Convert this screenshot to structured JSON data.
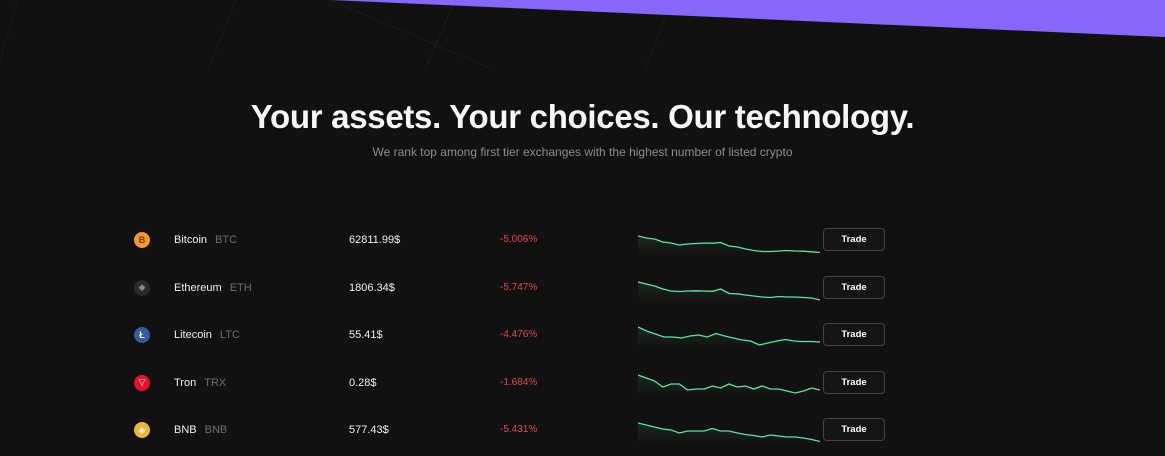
{
  "hero": {
    "title": "Your assets. Your choices. Our technology.",
    "subtitle": "We rank top among first tier exchanges with the highest number of listed crypto"
  },
  "colors": {
    "background": "#111111",
    "accent_purple": "#8766fc",
    "negative": "#e0454f",
    "sparkline": "#5ee3a1"
  },
  "assets": [
    {
      "name": "Bitcoin",
      "symbol": "BTC",
      "price": "62811.99$",
      "change": "-5.006%",
      "icon": "bitcoin-icon",
      "icon_color": "#f2962d",
      "icon_glyph": "B",
      "trade_label": "Trade",
      "spark": [
        10,
        12,
        13,
        16,
        17,
        19,
        18,
        17.5,
        17,
        17.2,
        16.5,
        20,
        21,
        23,
        24.5,
        25.5,
        25.5,
        25,
        24.5,
        25,
        25.2,
        25.8,
        26.5
      ]
    },
    {
      "name": "Ethereum",
      "symbol": "ETH",
      "price": "1806.34$",
      "change": "-5.747%",
      "icon": "ethereum-icon",
      "icon_color": "#2a2a2a",
      "icon_glyph": "◆",
      "trade_label": "Trade",
      "spark": [
        8,
        10,
        12,
        15,
        17,
        17.5,
        17,
        16.8,
        17,
        17.3,
        15,
        19.5,
        19.8,
        21,
        22,
        23,
        23.5,
        22.5,
        23,
        23,
        23.5,
        24,
        26
      ]
    },
    {
      "name": "Litecoin",
      "symbol": "LTC",
      "price": "55.41$",
      "change": "-4.476%",
      "icon": "litecoin-icon",
      "icon_color": "#345d9d",
      "icon_glyph": "Ł",
      "trade_label": "Trade",
      "spark": [
        6,
        10,
        13,
        16,
        16,
        17,
        15,
        14,
        16,
        12.5,
        15,
        17,
        19,
        20,
        24,
        22,
        20,
        18.5,
        20,
        20.5,
        20.5,
        21
      ]
    },
    {
      "name": "Tron",
      "symbol": "TRX",
      "price": "0.28$",
      "change": "-1.684%",
      "icon": "tron-icon",
      "icon_color": "#e8112d",
      "icon_glyph": "▽",
      "trade_label": "Trade",
      "spark": [
        6,
        9,
        12,
        18,
        15,
        15,
        21,
        20,
        20,
        17,
        19,
        15,
        18,
        17,
        20,
        17,
        20,
        20,
        22,
        24,
        22,
        19,
        21
      ]
    },
    {
      "name": "BNB",
      "symbol": "BNB",
      "price": "577.43$",
      "change": "-5.431%",
      "icon": "bnb-icon",
      "icon_color": "#e8b83a",
      "icon_glyph": "◈",
      "trade_label": "Trade",
      "spark": [
        7,
        9,
        11,
        13,
        14,
        17,
        15,
        15,
        15,
        12.5,
        15,
        15,
        17,
        18.5,
        19.5,
        21,
        19,
        20,
        21,
        21,
        22,
        23.5,
        25.5
      ]
    }
  ]
}
